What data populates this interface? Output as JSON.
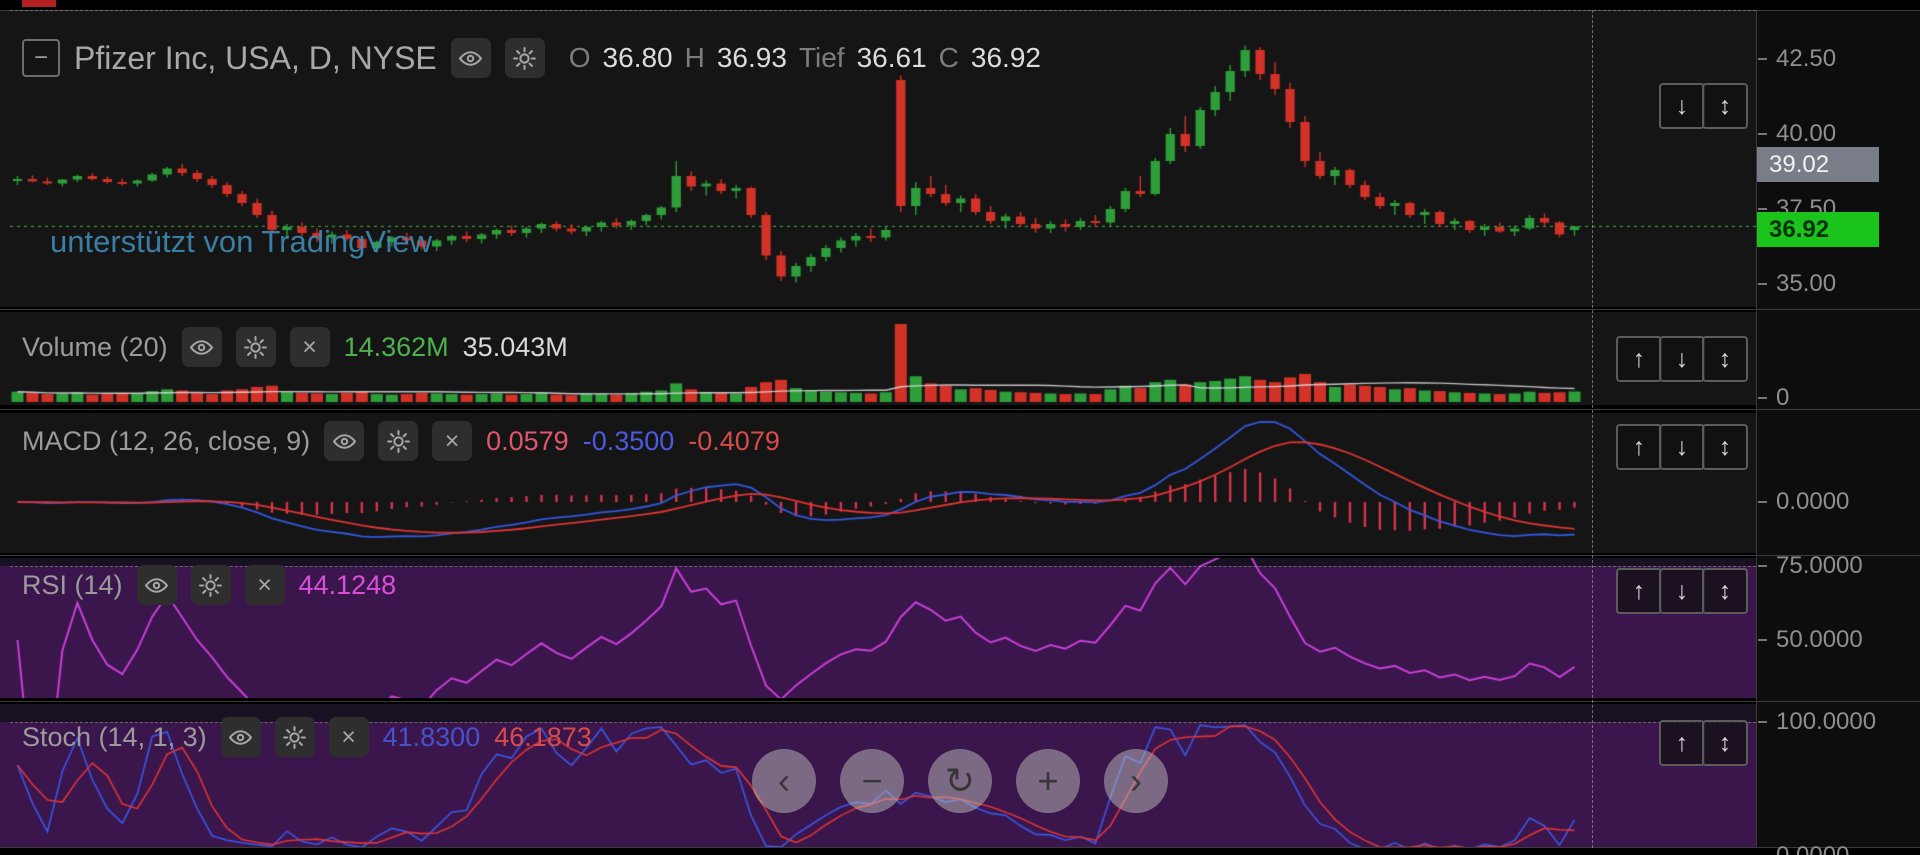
{
  "colors": {
    "up": "#2e9e3a",
    "down": "#d23227",
    "prev_close": "rgba(70,200,70,0.9)",
    "macd_hist": "#d6344e",
    "macd_line": "#3457e0",
    "macd_signal": "#e03434",
    "rsi_line": "#c93fd6",
    "stoch_k": "#3a57e8",
    "stoch_d": "#e03434",
    "vol_ma": "rgba(225,225,232,0.85)"
  },
  "icons": {
    "up": "↑",
    "down": "↓",
    "updown": "↕",
    "close": "×",
    "collapse": "−"
  },
  "toolbar": {
    "prev": "‹",
    "minus": "−",
    "refresh": "↻",
    "plus": "+",
    "next": "›"
  },
  "main_pane": {
    "title": "Pfizer Inc, USA, D, NYSE",
    "watermark": "unterstützt von TradingView",
    "ohlc": {
      "open_label": "O",
      "open": "36.80",
      "high_label": "H",
      "high": "36.93",
      "low_label": "Tief",
      "low": "36.61",
      "close_label": "C",
      "close": "36.92"
    },
    "axis_labels": [
      "42.50",
      "40.00",
      "37.50",
      "35.00"
    ],
    "countdown_badge": "39.02",
    "last_price_badge": "36.92"
  },
  "volume_pane": {
    "label": "Volume (20)",
    "value": "14.362M",
    "ma_value": "35.043M",
    "axis_labels": [
      "0"
    ]
  },
  "macd_pane": {
    "label": "MACD (12, 26, close, 9)",
    "hist_value": "0.0579",
    "macd_value": "-0.3500",
    "signal_value": "-0.4079",
    "axis_labels": [
      "0.0000"
    ]
  },
  "rsi_pane": {
    "label": "RSI (14)",
    "value": "44.1248",
    "axis_labels": [
      "75.0000",
      "50.0000"
    ]
  },
  "stoch_pane": {
    "label": "Stoch (14, 1, 3)",
    "k_value": "41.8300",
    "d_value": "46.1873",
    "axis_labels": [
      "100.0000",
      "0.0000"
    ]
  },
  "chart_data": {
    "type": "candlestick",
    "symbol": "Pfizer Inc",
    "region": "USA",
    "interval": "D",
    "exchange": "NYSE",
    "price_axis": {
      "ticks": [
        42.5,
        40.0,
        37.5,
        35.0
      ],
      "visible_range": [
        34.2,
        44.1
      ],
      "last_price": 36.92,
      "countdown_price": 39.02
    },
    "indicators": {
      "volume_ma_period": 20,
      "macd_params": [
        12,
        26,
        9
      ],
      "rsi_period": 14,
      "stoch_params": [
        14,
        1,
        3
      ]
    },
    "readouts": {
      "volume": "14.362M",
      "volume_ma": "35.043M",
      "macd_hist": 0.0579,
      "macd": -0.35,
      "macd_signal": -0.4079,
      "rsi": 44.1248,
      "stoch_k": 41.83,
      "stoch_d": 46.1873
    },
    "candles": [
      [
        38.45,
        38.6,
        38.3,
        38.5
      ],
      [
        38.5,
        38.62,
        38.38,
        38.42
      ],
      [
        38.42,
        38.55,
        38.3,
        38.35
      ],
      [
        38.35,
        38.5,
        38.25,
        38.48
      ],
      [
        38.48,
        38.65,
        38.4,
        38.6
      ],
      [
        38.6,
        38.7,
        38.45,
        38.5
      ],
      [
        38.5,
        38.58,
        38.35,
        38.4
      ],
      [
        38.4,
        38.52,
        38.28,
        38.35
      ],
      [
        38.35,
        38.48,
        38.25,
        38.45
      ],
      [
        38.45,
        38.7,
        38.4,
        38.65
      ],
      [
        38.65,
        38.9,
        38.55,
        38.85
      ],
      [
        38.85,
        39.0,
        38.6,
        38.7
      ],
      [
        38.7,
        38.8,
        38.4,
        38.5
      ],
      [
        38.5,
        38.6,
        38.2,
        38.3
      ],
      [
        38.3,
        38.4,
        37.9,
        38.0
      ],
      [
        38.0,
        38.1,
        37.6,
        37.7
      ],
      [
        37.7,
        37.85,
        37.2,
        37.3
      ],
      [
        37.3,
        37.45,
        36.7,
        36.8
      ],
      [
        36.8,
        37.0,
        36.5,
        36.9
      ],
      [
        36.9,
        37.05,
        36.6,
        36.7
      ],
      [
        36.7,
        36.85,
        36.4,
        36.55
      ],
      [
        36.55,
        36.75,
        36.35,
        36.65
      ],
      [
        36.65,
        36.8,
        36.45,
        36.5
      ],
      [
        36.5,
        36.6,
        36.1,
        36.2
      ],
      [
        36.2,
        36.45,
        36.05,
        36.4
      ],
      [
        36.4,
        36.6,
        36.25,
        36.55
      ],
      [
        36.55,
        36.7,
        36.35,
        36.45
      ],
      [
        36.45,
        36.55,
        36.15,
        36.25
      ],
      [
        36.25,
        36.5,
        36.1,
        36.45
      ],
      [
        36.45,
        36.65,
        36.3,
        36.6
      ],
      [
        36.6,
        36.75,
        36.4,
        36.5
      ],
      [
        36.5,
        36.7,
        36.35,
        36.65
      ],
      [
        36.65,
        36.85,
        36.5,
        36.8
      ],
      [
        36.8,
        36.95,
        36.6,
        36.7
      ],
      [
        36.7,
        36.9,
        36.55,
        36.85
      ],
      [
        36.85,
        37.05,
        36.7,
        37.0
      ],
      [
        37.0,
        37.1,
        36.75,
        36.85
      ],
      [
        36.85,
        37.0,
        36.65,
        36.75
      ],
      [
        36.75,
        36.95,
        36.6,
        36.9
      ],
      [
        36.9,
        37.1,
        36.75,
        37.05
      ],
      [
        37.05,
        37.2,
        36.85,
        36.95
      ],
      [
        36.95,
        37.15,
        36.8,
        37.1
      ],
      [
        37.1,
        37.35,
        36.95,
        37.3
      ],
      [
        37.3,
        37.6,
        37.15,
        37.55
      ],
      [
        37.55,
        39.1,
        37.4,
        38.6
      ],
      [
        38.6,
        38.75,
        38.1,
        38.25
      ],
      [
        38.25,
        38.45,
        37.95,
        38.35
      ],
      [
        38.35,
        38.5,
        38.0,
        38.1
      ],
      [
        38.1,
        38.3,
        37.85,
        38.2
      ],
      [
        38.2,
        38.25,
        37.2,
        37.3
      ],
      [
        37.3,
        37.4,
        35.8,
        35.95
      ],
      [
        35.95,
        36.1,
        35.1,
        35.25
      ],
      [
        35.25,
        35.7,
        35.05,
        35.6
      ],
      [
        35.6,
        36.0,
        35.4,
        35.9
      ],
      [
        35.9,
        36.3,
        35.75,
        36.2
      ],
      [
        36.2,
        36.55,
        36.05,
        36.45
      ],
      [
        36.45,
        36.7,
        36.25,
        36.6
      ],
      [
        36.6,
        36.85,
        36.4,
        36.55
      ],
      [
        36.55,
        36.9,
        36.45,
        36.8
      ],
      [
        41.8,
        41.95,
        37.4,
        37.6
      ],
      [
        37.6,
        38.4,
        37.3,
        38.2
      ],
      [
        38.2,
        38.6,
        37.9,
        38.0
      ],
      [
        38.0,
        38.3,
        37.6,
        37.7
      ],
      [
        37.7,
        37.95,
        37.4,
        37.85
      ],
      [
        37.85,
        38.0,
        37.3,
        37.4
      ],
      [
        37.4,
        37.6,
        37.0,
        37.1
      ],
      [
        37.1,
        37.35,
        36.85,
        37.25
      ],
      [
        37.25,
        37.4,
        36.9,
        37.0
      ],
      [
        37.0,
        37.2,
        36.7,
        36.85
      ],
      [
        36.85,
        37.1,
        36.7,
        37.0
      ],
      [
        37.0,
        37.15,
        36.75,
        36.9
      ],
      [
        36.9,
        37.2,
        36.8,
        37.1
      ],
      [
        37.1,
        37.3,
        36.9,
        37.05
      ],
      [
        37.05,
        37.6,
        36.95,
        37.5
      ],
      [
        37.5,
        38.2,
        37.4,
        38.1
      ],
      [
        38.1,
        38.6,
        37.9,
        38.0
      ],
      [
        38.0,
        39.2,
        37.95,
        39.1
      ],
      [
        39.1,
        40.2,
        39.0,
        40.0
      ],
      [
        40.0,
        40.6,
        39.4,
        39.6
      ],
      [
        39.6,
        40.9,
        39.5,
        40.8
      ],
      [
        40.8,
        41.6,
        40.6,
        41.4
      ],
      [
        41.4,
        42.3,
        41.1,
        42.1
      ],
      [
        42.1,
        42.95,
        41.9,
        42.8
      ],
      [
        42.8,
        42.9,
        41.8,
        42.0
      ],
      [
        42.0,
        42.4,
        41.3,
        41.5
      ],
      [
        41.5,
        41.7,
        40.2,
        40.4
      ],
      [
        40.4,
        40.6,
        38.9,
        39.1
      ],
      [
        39.1,
        39.4,
        38.5,
        38.6
      ],
      [
        38.6,
        38.9,
        38.3,
        38.8
      ],
      [
        38.8,
        38.85,
        38.2,
        38.3
      ],
      [
        38.3,
        38.45,
        37.8,
        37.9
      ],
      [
        37.9,
        38.05,
        37.5,
        37.6
      ],
      [
        37.6,
        37.8,
        37.3,
        37.7
      ],
      [
        37.7,
        37.75,
        37.2,
        37.3
      ],
      [
        37.3,
        37.5,
        37.0,
        37.4
      ],
      [
        37.4,
        37.45,
        36.9,
        37.0
      ],
      [
        37.0,
        37.2,
        36.8,
        37.1
      ],
      [
        37.1,
        37.15,
        36.7,
        36.8
      ],
      [
        36.8,
        37.0,
        36.6,
        36.9
      ],
      [
        36.9,
        37.05,
        36.7,
        36.75
      ],
      [
        36.75,
        36.95,
        36.6,
        36.85
      ],
      [
        36.85,
        37.3,
        36.8,
        37.2
      ],
      [
        37.2,
        37.35,
        36.95,
        37.05
      ],
      [
        37.05,
        37.1,
        36.55,
        36.65
      ],
      [
        36.8,
        36.93,
        36.61,
        36.92
      ]
    ],
    "volumes_millions": [
      14,
      12,
      10,
      11,
      13,
      9,
      10,
      12,
      11,
      15,
      18,
      16,
      12,
      10,
      16,
      18,
      22,
      24,
      14,
      12,
      11,
      10,
      12,
      14,
      10,
      9,
      10,
      12,
      11,
      10,
      9,
      10,
      11,
      9,
      10,
      12,
      9,
      8,
      10,
      11,
      9,
      12,
      14,
      16,
      28,
      18,
      13,
      12,
      11,
      22,
      30,
      34,
      20,
      16,
      14,
      13,
      12,
      11,
      13,
      128,
      40,
      28,
      24,
      18,
      20,
      17,
      14,
      13,
      12,
      11,
      10,
      11,
      10,
      18,
      24,
      20,
      30,
      34,
      26,
      30,
      32,
      36,
      40,
      34,
      30,
      38,
      44,
      30,
      22,
      26,
      24,
      22,
      18,
      20,
      16,
      15,
      13,
      12,
      11,
      10,
      11,
      14,
      12,
      13,
      14.362
    ]
  }
}
